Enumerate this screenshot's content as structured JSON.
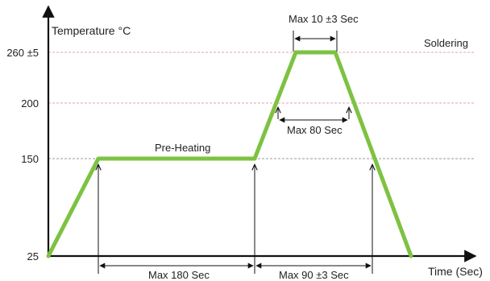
{
  "chart_data": {
    "type": "line",
    "ylabel": "Temperature °C",
    "xlabel": "Time (Sec)",
    "y_ticks": [
      {
        "value": 25,
        "label": "25"
      },
      {
        "value": 150,
        "label": "150"
      },
      {
        "value": 200,
        "label": "200"
      },
      {
        "value": 260,
        "label": "260 ±5"
      }
    ],
    "series": [
      {
        "color": "#7dc242",
        "points": [
          {
            "t": 0,
            "y": 25
          },
          {
            "t": 60,
            "y": 150
          },
          {
            "t": 240,
            "y": 150
          },
          {
            "t": 292,
            "y": 260
          },
          {
            "t": 302,
            "y": 260
          },
          {
            "t": 352,
            "y": 25
          }
        ]
      }
    ],
    "reference_lines": [
      {
        "y": 150,
        "color": "#999999"
      },
      {
        "y": 200,
        "color": "#e6a0b4"
      },
      {
        "y": 260,
        "color": "#e6a0b4"
      }
    ],
    "annotations": {
      "soldering": "Soldering",
      "preheating": "Pre-Heating",
      "max_10": "Max 10 ±3 Sec",
      "max_80": "Max 80 Sec",
      "max_180": "Max 180 Sec",
      "max_90": "Max 90 ±3 Sec"
    }
  }
}
